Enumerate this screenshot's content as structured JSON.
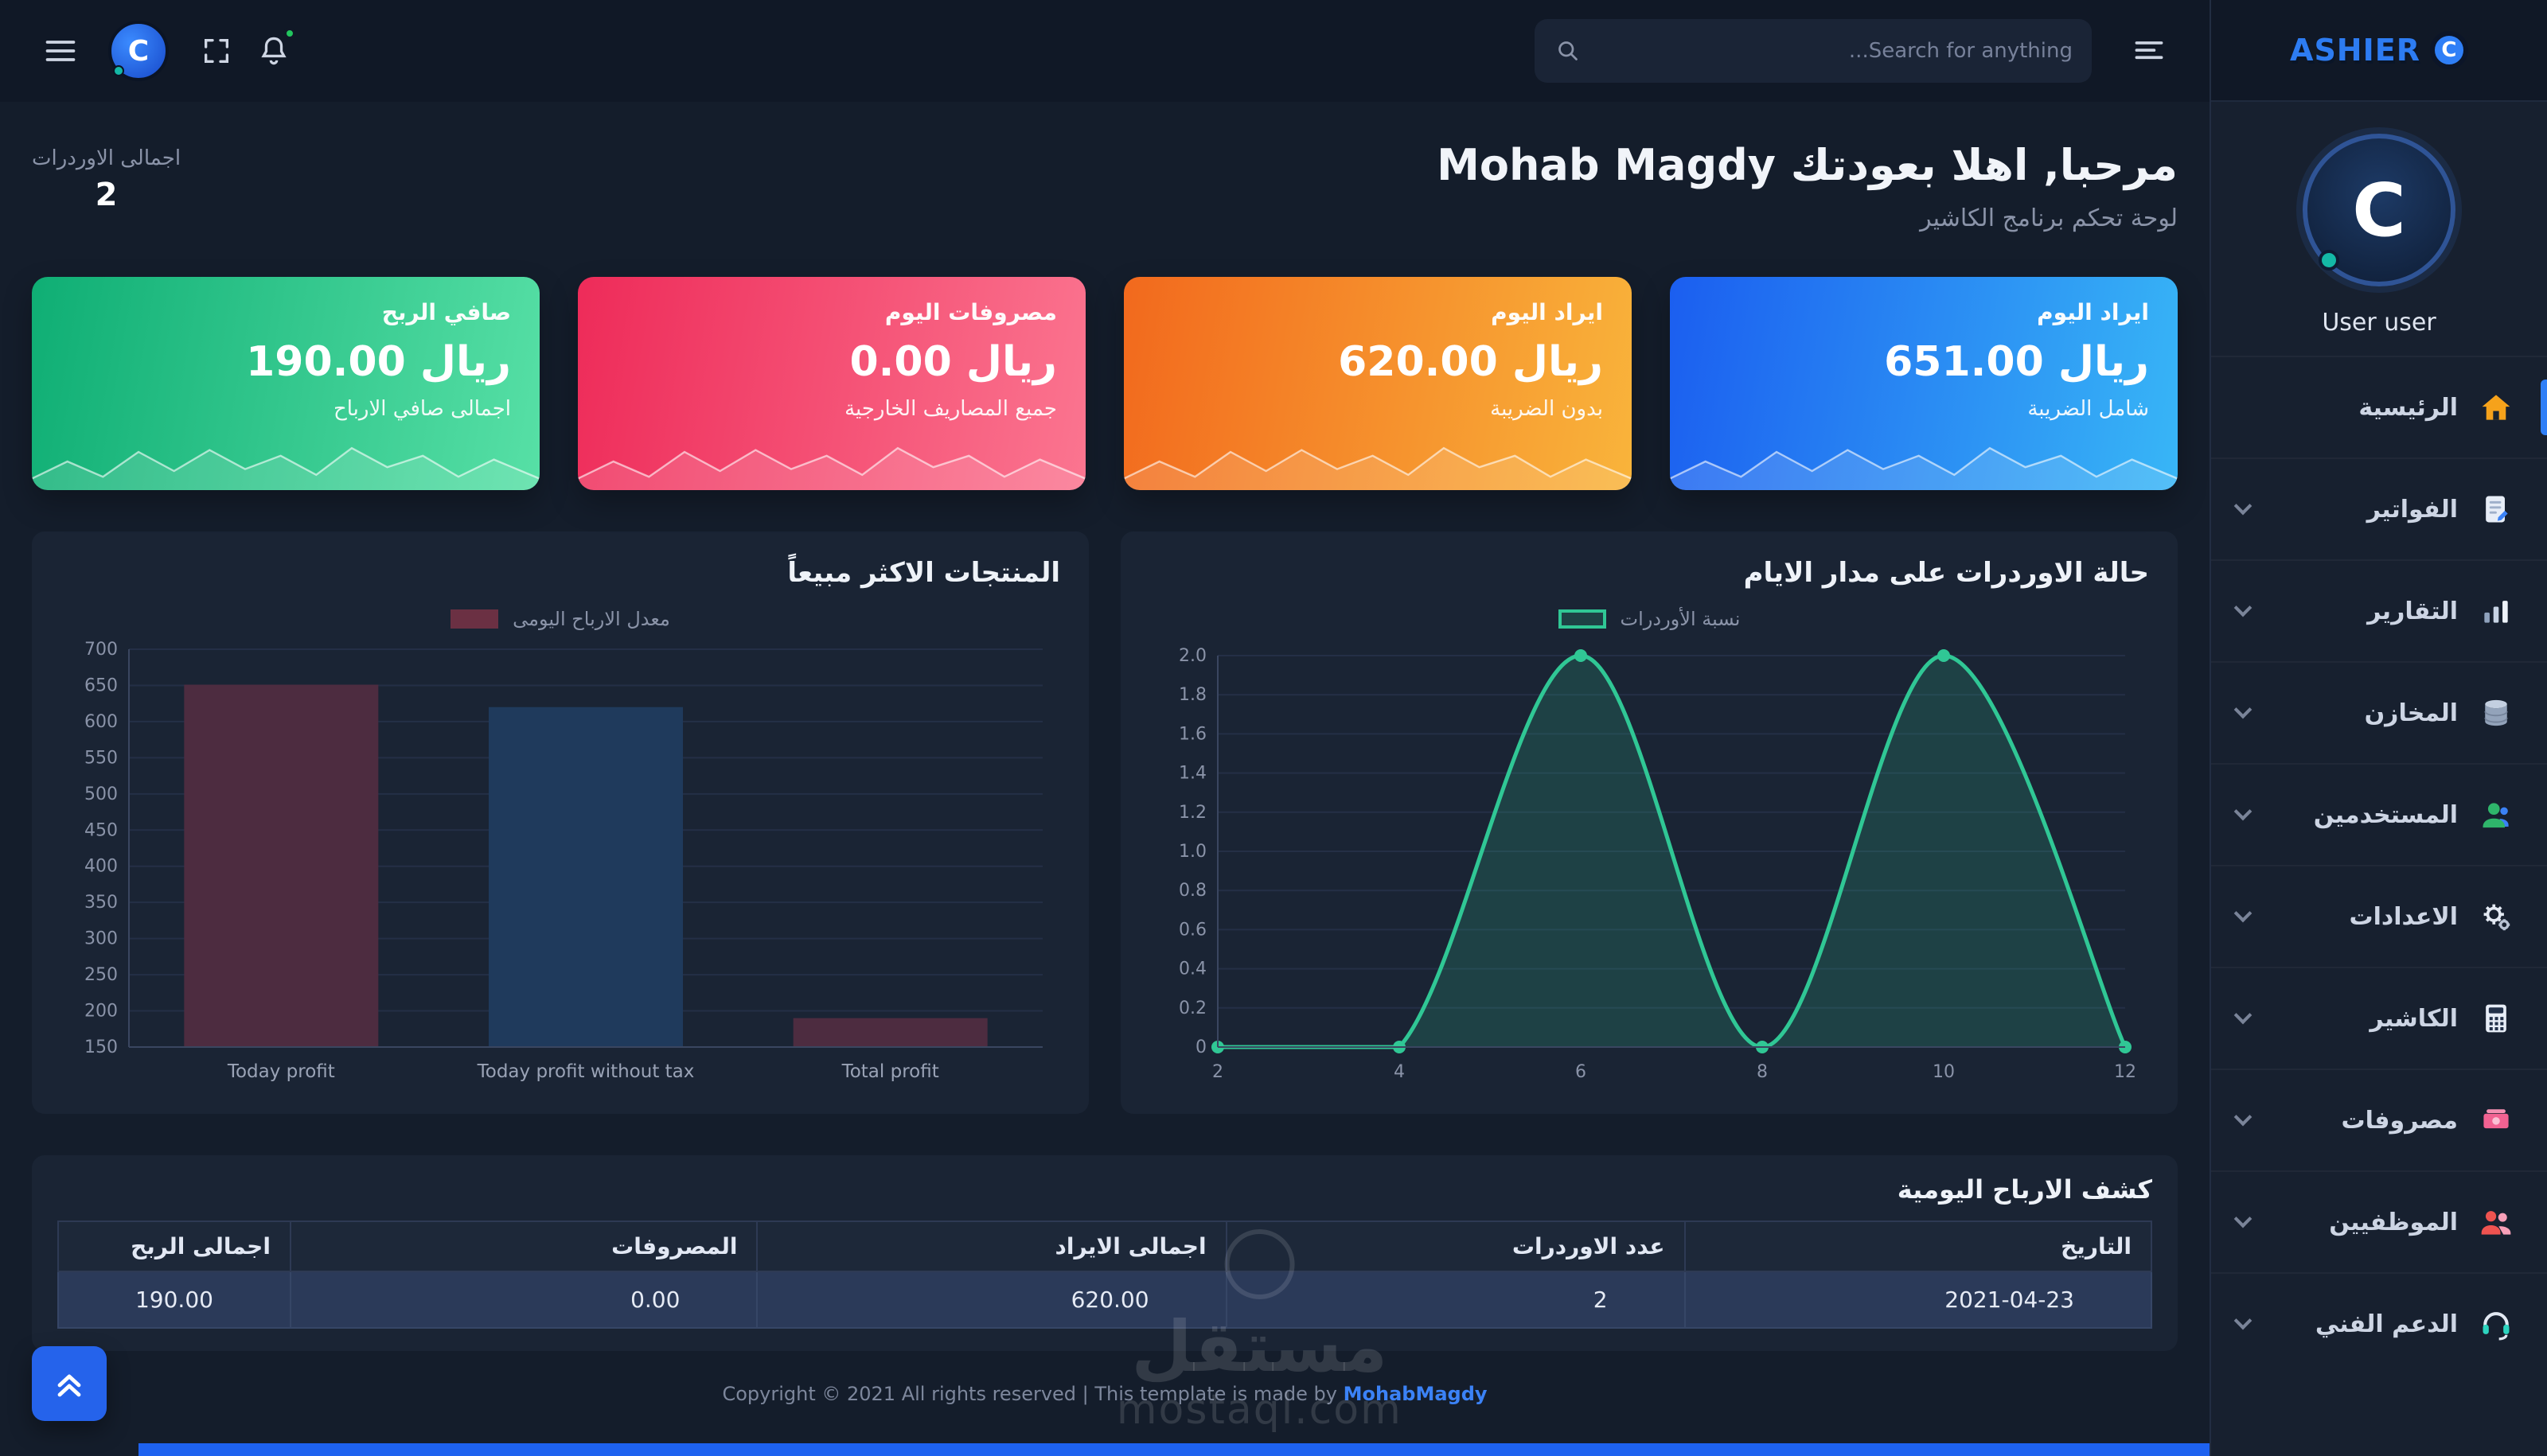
{
  "topbar": {
    "search_placeholder": "...Search for anything",
    "brand_c": "C",
    "brand_rest": "ASHIER"
  },
  "sidebar": {
    "brand_c": "C",
    "brand_rest": "ASHIER",
    "avatar_letter": "C",
    "user_name": "User user",
    "items": [
      {
        "label": "الرئيسية"
      },
      {
        "label": "الفواتير"
      },
      {
        "label": "التقارير"
      },
      {
        "label": "المخازن"
      },
      {
        "label": "المستخدمين"
      },
      {
        "label": "الاعدادات"
      },
      {
        "label": "الكاشير"
      },
      {
        "label": "مصروفات"
      },
      {
        "label": "الموظفيين"
      },
      {
        "label": "الدعم الفني"
      }
    ]
  },
  "header": {
    "welcome": "مرحبا, اهلا بعودتك Mohab Magdy",
    "subtitle": "لوحة تحكم برنامج الكاشير",
    "orders_label": "اجمالى الاوردرات",
    "orders_value": "2"
  },
  "stat_cards": [
    {
      "title": "ايراد اليوم",
      "value": "651.00 ريال",
      "subtitle": "شامل الضريبة",
      "gradient": [
        "#1b5ef0",
        "#38b6f6"
      ]
    },
    {
      "title": "ايراد اليوم",
      "value": "620.00 ريال",
      "subtitle": "بدون الضريبة",
      "gradient": [
        "#f2691d",
        "#f9b43b"
      ]
    },
    {
      "title": "مصروفات اليوم",
      "value": "0.00 ريال",
      "subtitle": "جميع المصاريف الخارجية",
      "gradient": [
        "#ee2b59",
        "#fb7590"
      ]
    },
    {
      "title": "صافي الربح",
      "value": "190.00 ريال",
      "subtitle": "اجمالى صافي الارباح",
      "gradient": [
        "#0fae74",
        "#57e0a6"
      ]
    }
  ],
  "chart_data": [
    {
      "type": "line",
      "title": "حالة الاوردرات على مدار الايام",
      "legend": "نسبة الأوردرات",
      "x": [
        2,
        4,
        6,
        8,
        10,
        12
      ],
      "values": [
        0,
        0,
        2,
        0,
        2,
        0
      ],
      "xticks": [
        2,
        4,
        6,
        8,
        10,
        12
      ],
      "yticks": [
        0,
        0.2,
        0.4,
        0.6,
        0.8,
        1.0,
        1.2,
        1.4,
        1.6,
        1.8,
        2.0
      ],
      "ylim": [
        0,
        2
      ],
      "line_color": "#30c795",
      "fill_color": "rgba(48,199,149,0.18)",
      "legend_position": "top"
    },
    {
      "type": "bar",
      "title": "المنتجات الاكثر مبيعاً",
      "legend": "معدل الارباح اليومى",
      "categories": [
        "Today profit",
        "Today profit without tax",
        "Total profit"
      ],
      "values": [
        651,
        620,
        190
      ],
      "yticks": [
        150,
        200,
        250,
        300,
        350,
        400,
        450,
        500,
        550,
        600,
        650,
        700
      ],
      "ylim": [
        150,
        700
      ],
      "bar_colors": [
        "#4d2c40",
        "#1f3a5c",
        "#4d2c40"
      ],
      "legend_color": "#6b3043",
      "legend_position": "top"
    }
  ],
  "table": {
    "title": "كشف الارباح اليومية",
    "headers": [
      "التاريخ",
      "عدد الاوردرات",
      "اجمالى الايراد",
      "المصروفات",
      "اجمالى الربح"
    ],
    "rows": [
      [
        "2021-04-23",
        "2",
        "620.00",
        "0.00",
        "190.00"
      ]
    ]
  },
  "footer": {
    "text": "Copyright © 2021 All rights reserved | This template is made by ",
    "link": "MohabMagdy"
  },
  "watermark": {
    "line1": "مستقل",
    "line2": "mostaql.com"
  }
}
